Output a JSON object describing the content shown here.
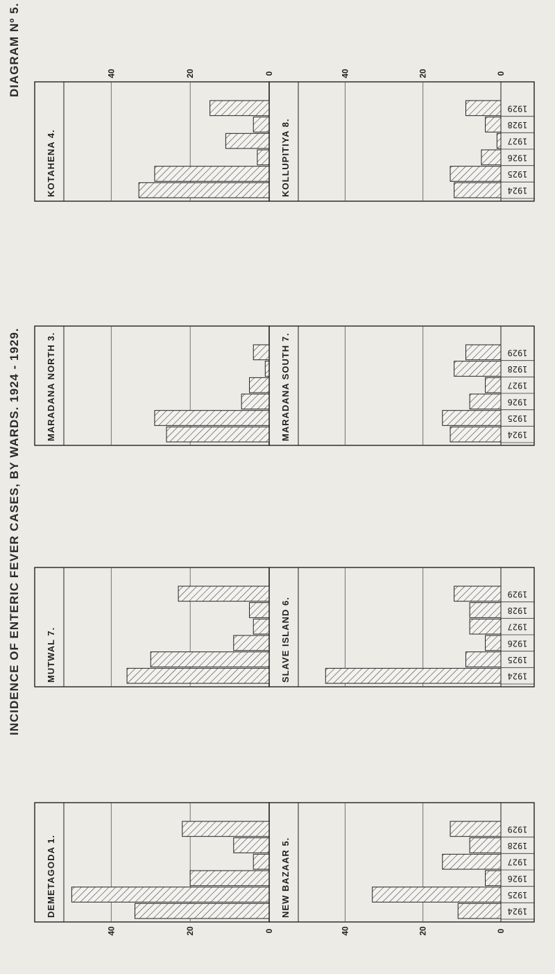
{
  "page": {
    "title": "INCIDENCE OF ENTERIC FEVER CASES, BY WARDS. 1924 - 1929.",
    "diagram_label": "DIAGRAM Nº 5."
  },
  "chart_data": {
    "type": "bar",
    "orientation": "horizontal",
    "years": [
      "1929",
      "1928",
      "1927",
      "1926",
      "1925",
      "1924"
    ],
    "x_ticks": [
      "40",
      "20",
      "0"
    ],
    "xlim": [
      0,
      52
    ],
    "panels": [
      {
        "name": "KOTAHENA 4.",
        "values": [
          15,
          4,
          11,
          3,
          29,
          33
        ]
      },
      {
        "name": "KOLLUPITIYA 8.",
        "values": [
          9,
          4,
          1,
          5,
          13,
          12
        ]
      },
      {
        "name": "MARADANA NORTH 3.",
        "values": [
          4,
          1,
          5,
          7,
          29,
          26
        ]
      },
      {
        "name": "MARADANA SOUTH 7.",
        "values": [
          9,
          12,
          4,
          8,
          15,
          13
        ]
      },
      {
        "name": "MUTWAL 7.",
        "values": [
          23,
          5,
          4,
          9,
          30,
          36
        ]
      },
      {
        "name": "SLAVE ISLAND 6.",
        "values": [
          12,
          8,
          8,
          4,
          9,
          45
        ]
      },
      {
        "name": "DEMETAGODA 1.",
        "values": [
          22,
          9,
          4,
          20,
          50,
          34
        ]
      },
      {
        "name": "NEW BAZAAR 5.",
        "values": [
          13,
          8,
          15,
          4,
          33,
          11
        ]
      }
    ]
  }
}
